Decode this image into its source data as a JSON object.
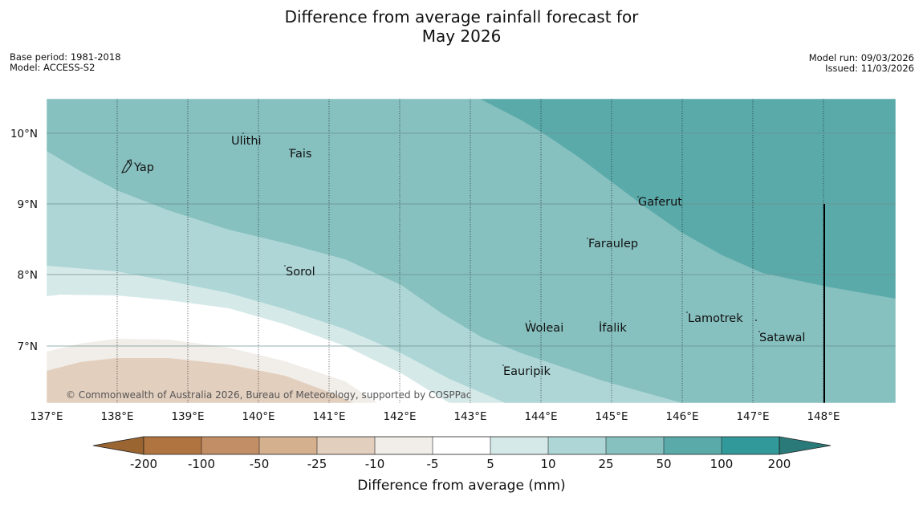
{
  "title": {
    "line1": "Difference from average rainfall forecast for",
    "line2": "May 2026"
  },
  "meta": {
    "base_period": "Base period: 1981-2018",
    "model": "Model: ACCESS-S2",
    "model_run": "Model run: 09/03/2026",
    "issued": "Issued: 11/03/2026"
  },
  "map": {
    "lon_ticks": [
      "137°E",
      "138°E",
      "139°E",
      "140°E",
      "141°E",
      "142°E",
      "143°E",
      "144°E",
      "145°E",
      "146°E",
      "147°E",
      "148°E"
    ],
    "lat_ticks": [
      "10°N",
      "9°N",
      "8°N",
      "7°N"
    ],
    "places": [
      "Yap",
      "Ulithi",
      "Fais",
      "Gaferut",
      "Faraulep",
      "Sorol",
      "Woleai",
      "Ifalik",
      "Lamotrek",
      "Satawal",
      "Eauripik"
    ],
    "copyright": "© Commonwealth of Australia 2026, Bureau of Meteorology, supported by COSPPac"
  },
  "colorbar": {
    "labels": [
      "-200",
      "-100",
      "-50",
      "-25",
      "-10",
      "-5",
      "5",
      "10",
      "25",
      "50",
      "100",
      "200"
    ],
    "colors": [
      "#9b6532",
      "#b07440",
      "#c28e66",
      "#d4b08f",
      "#e3cfbe",
      "#f1ede8",
      "#ffffff",
      "#d5e9e8",
      "#aed6d6",
      "#86c0bf",
      "#5aaaaa",
      "#32999a",
      "#2b7a7a"
    ],
    "title": "Difference from average (mm)"
  }
}
